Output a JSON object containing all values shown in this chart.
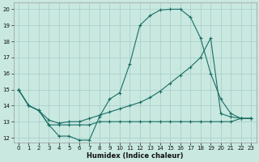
{
  "xlabel": "Humidex (Indice chaleur)",
  "xlim": [
    -0.5,
    23.5
  ],
  "ylim": [
    11.7,
    20.4
  ],
  "yticks": [
    12,
    13,
    14,
    15,
    16,
    17,
    18,
    19,
    20
  ],
  "xticks": [
    0,
    1,
    2,
    3,
    4,
    5,
    6,
    7,
    8,
    9,
    10,
    11,
    12,
    13,
    14,
    15,
    16,
    17,
    18,
    19,
    20,
    21,
    22,
    23
  ],
  "bg_color": "#c8e8e0",
  "grid_color": "#a8ccc8",
  "line_color": "#1a6e64",
  "lines": [
    {
      "x": [
        0,
        1,
        2,
        3,
        4,
        5,
        6,
        7,
        8,
        9,
        10,
        11,
        12,
        13,
        14,
        15,
        16,
        17,
        18,
        19,
        20,
        21,
        22,
        23
      ],
      "y": [
        15.0,
        14.0,
        13.7,
        12.8,
        12.1,
        12.1,
        11.85,
        11.85,
        13.3,
        14.4,
        14.8,
        16.6,
        19.0,
        19.6,
        19.95,
        20.0,
        20.0,
        19.5,
        18.2,
        16.0,
        14.4,
        13.5,
        13.2,
        13.2
      ]
    },
    {
      "x": [
        0,
        1,
        2,
        3,
        4,
        5,
        6,
        7,
        8,
        9,
        10,
        11,
        12,
        13,
        14,
        15,
        16,
        17,
        18,
        19,
        20,
        21,
        22,
        23
      ],
      "y": [
        15.0,
        14.0,
        13.7,
        13.1,
        12.9,
        13.0,
        13.0,
        13.2,
        13.4,
        13.6,
        13.8,
        14.0,
        14.2,
        14.5,
        14.9,
        15.4,
        15.9,
        16.4,
        17.0,
        18.2,
        13.5,
        13.3,
        13.2,
        13.2
      ]
    },
    {
      "x": [
        0,
        1,
        2,
        3,
        4,
        5,
        6,
        7,
        8,
        9,
        10,
        11,
        12,
        13,
        14,
        15,
        16,
        17,
        18,
        19,
        20,
        21,
        22,
        23
      ],
      "y": [
        15.0,
        14.0,
        13.7,
        12.8,
        12.8,
        12.8,
        12.8,
        12.8,
        13.0,
        13.0,
        13.0,
        13.0,
        13.0,
        13.0,
        13.0,
        13.0,
        13.0,
        13.0,
        13.0,
        13.0,
        13.0,
        13.0,
        13.2,
        13.2
      ]
    }
  ]
}
